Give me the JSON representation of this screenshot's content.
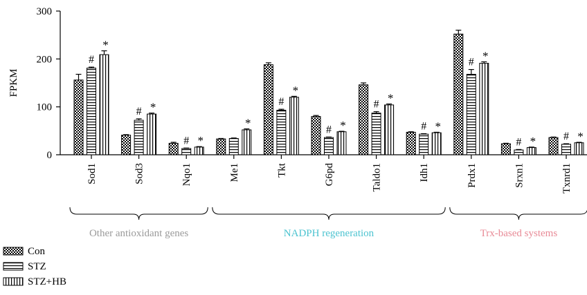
{
  "chart_data": {
    "type": "bar",
    "ylabel": "FPKM",
    "ylim": [
      0,
      300
    ],
    "yticks": [
      0,
      100,
      200,
      300
    ],
    "grid": false,
    "legend_position": "bottom-left",
    "categories": [
      "Sod1",
      "Sod3",
      "Nqo1",
      "Me1",
      "Tkt",
      "G6pd",
      "Taldo1",
      "Idh1",
      "Prdx1",
      "Srxn1",
      "Txnrd1"
    ],
    "series": [
      {
        "name": "Con",
        "pattern": "checker",
        "values": [
          156,
          41,
          24,
          33,
          188,
          80,
          146,
          47,
          252,
          23,
          36
        ],
        "errors": [
          12,
          1,
          2,
          1,
          4,
          2,
          4,
          1,
          8,
          1,
          1
        ]
      },
      {
        "name": "STZ",
        "pattern": "horizontal",
        "values": [
          181,
          72,
          13,
          34,
          93,
          36,
          87,
          43,
          168,
          10,
          22
        ],
        "errors": [
          2,
          3,
          1,
          1,
          2,
          1,
          3,
          1,
          10,
          1,
          1
        ]
      },
      {
        "name": "STZ+HB",
        "pattern": "vertical",
        "values": [
          209,
          85,
          16,
          52,
          120,
          48,
          104,
          46,
          191,
          15,
          25
        ],
        "errors": [
          8,
          2,
          1,
          2,
          2,
          1,
          2,
          1,
          3,
          1,
          1
        ]
      }
    ],
    "annotations": [
      {
        "category": "Sod1",
        "series": "STZ",
        "text": "#"
      },
      {
        "category": "Sod1",
        "series": "STZ+HB",
        "text": "*"
      },
      {
        "category": "Sod3",
        "series": "STZ",
        "text": "#"
      },
      {
        "category": "Sod3",
        "series": "STZ+HB",
        "text": "*"
      },
      {
        "category": "Nqo1",
        "series": "STZ",
        "text": "#"
      },
      {
        "category": "Nqo1",
        "series": "STZ+HB",
        "text": "*"
      },
      {
        "category": "Me1",
        "series": "STZ+HB",
        "text": "*"
      },
      {
        "category": "Tkt",
        "series": "STZ",
        "text": "#"
      },
      {
        "category": "Tkt",
        "series": "STZ+HB",
        "text": "*"
      },
      {
        "category": "G6pd",
        "series": "STZ",
        "text": "#"
      },
      {
        "category": "G6pd",
        "series": "STZ+HB",
        "text": "*"
      },
      {
        "category": "Taldo1",
        "series": "STZ",
        "text": "#"
      },
      {
        "category": "Taldo1",
        "series": "STZ+HB",
        "text": "*"
      },
      {
        "category": "Idh1",
        "series": "STZ",
        "text": "#"
      },
      {
        "category": "Idh1",
        "series": "STZ+HB",
        "text": "*"
      },
      {
        "category": "Prdx1",
        "series": "STZ",
        "text": "#"
      },
      {
        "category": "Prdx1",
        "series": "STZ+HB",
        "text": "*"
      },
      {
        "category": "Srxn1",
        "series": "STZ",
        "text": "#"
      },
      {
        "category": "Srxn1",
        "series": "STZ+HB",
        "text": "*"
      },
      {
        "category": "Txnrd1",
        "series": "STZ",
        "text": "#"
      },
      {
        "category": "Txnrd1",
        "series": "STZ+HB",
        "text": "*"
      }
    ],
    "groups": [
      {
        "label": "Other antioxidant genes",
        "color": "#9a9a9a",
        "categories": [
          "Sod1",
          "Sod3",
          "Nqo1"
        ]
      },
      {
        "label": "NADPH regeneration",
        "color": "#4cc3d0",
        "categories": [
          "Me1",
          "Tkt",
          "G6pd",
          "Taldo1",
          "Idh1"
        ]
      },
      {
        "label": "Trx-based systems",
        "color": "#e88a96",
        "categories": [
          "Prdx1",
          "Srxn1",
          "Txnrd1"
        ]
      }
    ]
  }
}
